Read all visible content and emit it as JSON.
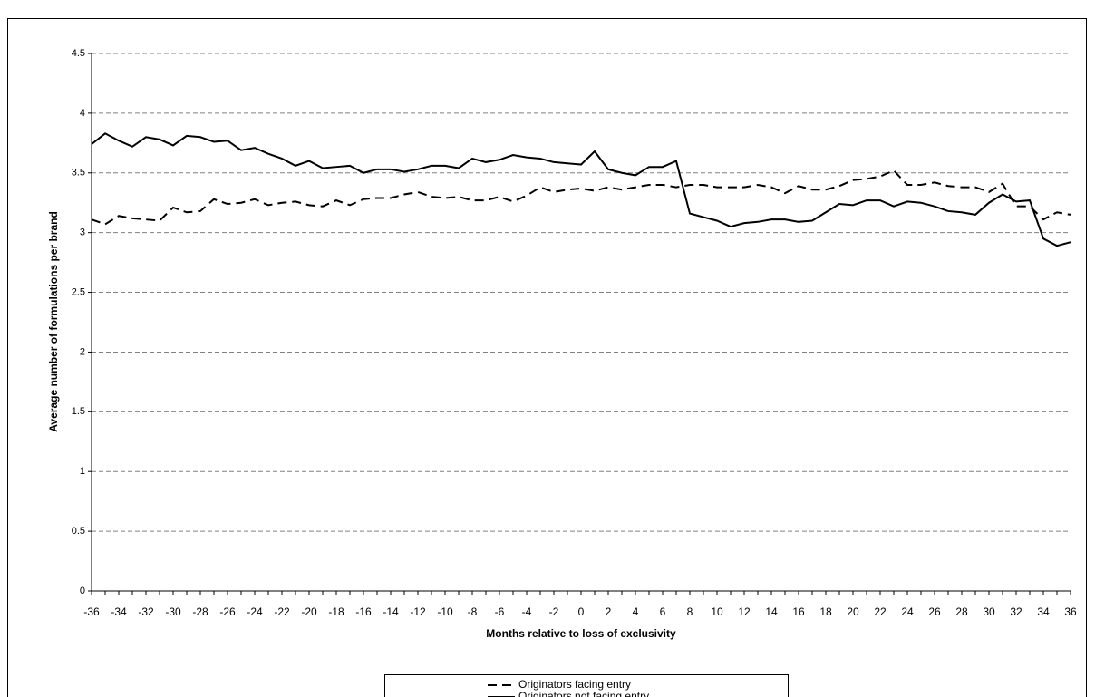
{
  "chart_data": {
    "type": "line",
    "xlabel": "Months relative to loss of exclusivity",
    "ylabel": "Average number of formulations per brand",
    "x": [
      -36,
      -35,
      -34,
      -33,
      -32,
      -31,
      -30,
      -29,
      -28,
      -27,
      -26,
      -25,
      -24,
      -23,
      -22,
      -21,
      -20,
      -19,
      -18,
      -17,
      -16,
      -15,
      -14,
      -13,
      -12,
      -11,
      -10,
      -9,
      -8,
      -7,
      -6,
      -5,
      -4,
      -3,
      -2,
      -1,
      0,
      1,
      2,
      3,
      4,
      5,
      6,
      7,
      8,
      9,
      10,
      11,
      12,
      13,
      14,
      15,
      16,
      17,
      18,
      19,
      20,
      21,
      22,
      23,
      24,
      25,
      26,
      27,
      28,
      29,
      30,
      31,
      32,
      33,
      34,
      35,
      36
    ],
    "xlim": [
      -36,
      36
    ],
    "xticks": [
      -36,
      -34,
      -32,
      -30,
      -28,
      -26,
      -24,
      -22,
      -20,
      -18,
      -16,
      -14,
      -12,
      -10,
      -8,
      -6,
      -4,
      -2,
      0,
      2,
      4,
      6,
      8,
      10,
      12,
      14,
      16,
      18,
      20,
      22,
      24,
      26,
      28,
      30,
      32,
      34,
      36
    ],
    "ylim": [
      0,
      4.5
    ],
    "yticks": [
      0,
      0.5,
      1,
      1.5,
      2,
      2.5,
      3,
      3.5,
      4,
      4.5
    ],
    "grid": true,
    "legend": "bottom",
    "series": [
      {
        "name": "Originators facing entry",
        "color": "#000000",
        "dash": true,
        "values": [
          3.11,
          3.07,
          3.14,
          3.12,
          3.11,
          3.1,
          3.21,
          3.17,
          3.18,
          3.28,
          3.24,
          3.25,
          3.28,
          3.23,
          3.25,
          3.26,
          3.23,
          3.22,
          3.27,
          3.23,
          3.28,
          3.29,
          3.29,
          3.32,
          3.34,
          3.3,
          3.29,
          3.3,
          3.27,
          3.27,
          3.3,
          3.26,
          3.31,
          3.38,
          3.34,
          3.36,
          3.37,
          3.35,
          3.38,
          3.36,
          3.38,
          3.4,
          3.4,
          3.38,
          3.4,
          3.4,
          3.38,
          3.38,
          3.38,
          3.4,
          3.38,
          3.33,
          3.39,
          3.36,
          3.36,
          3.39,
          3.44,
          3.45,
          3.47,
          3.52,
          3.4,
          3.4,
          3.42,
          3.39,
          3.38,
          3.38,
          3.34,
          3.41,
          3.22,
          3.22,
          3.11,
          3.17,
          3.15
        ]
      },
      {
        "name": "Originators not facing entry",
        "color": "#000000",
        "dash": false,
        "values": [
          3.74,
          3.83,
          3.77,
          3.72,
          3.8,
          3.78,
          3.73,
          3.81,
          3.8,
          3.76,
          3.77,
          3.69,
          3.71,
          3.66,
          3.62,
          3.56,
          3.6,
          3.54,
          3.55,
          3.56,
          3.5,
          3.53,
          3.53,
          3.51,
          3.53,
          3.56,
          3.56,
          3.54,
          3.62,
          3.59,
          3.61,
          3.65,
          3.63,
          3.62,
          3.59,
          3.58,
          3.57,
          3.68,
          3.53,
          3.5,
          3.48,
          3.55,
          3.55,
          3.6,
          3.16,
          3.13,
          3.1,
          3.05,
          3.08,
          3.09,
          3.11,
          3.11,
          3.09,
          3.1,
          3.17,
          3.24,
          3.23,
          3.27,
          3.27,
          3.22,
          3.26,
          3.25,
          3.22,
          3.18,
          3.17,
          3.15,
          3.25,
          3.32,
          3.26,
          3.27,
          2.95,
          2.89,
          2.92
        ]
      }
    ]
  }
}
